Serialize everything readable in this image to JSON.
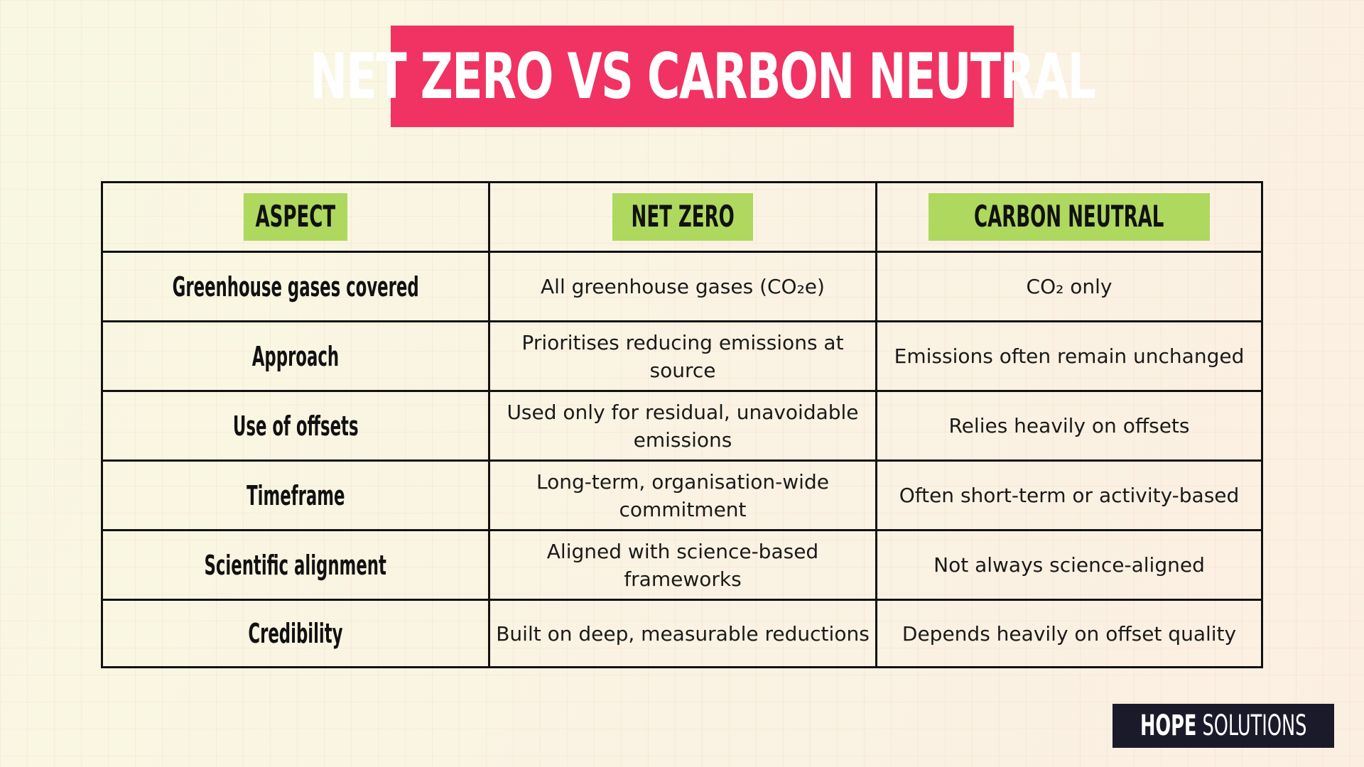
{
  "title": "NET ZERO VS CARBON NEUTRAL",
  "table": {
    "headers": [
      "ASPECT",
      "NET ZERO",
      "CARBON NEUTRAL"
    ],
    "rows": [
      {
        "aspect": "Greenhouse gases covered",
        "net_zero": "All greenhouse gases (CO₂e)",
        "carbon_neutral": "CO₂ only"
      },
      {
        "aspect": "Approach",
        "net_zero": "Prioritises reducing emissions at source",
        "carbon_neutral": "Emissions often remain unchanged"
      },
      {
        "aspect": "Use of offsets",
        "net_zero": "Used only for residual, unavoidable emissions",
        "carbon_neutral": "Relies heavily on offsets"
      },
      {
        "aspect": "Timeframe",
        "net_zero": "Long-term, organisation-wide commitment",
        "carbon_neutral": "Often short-term or activity-based"
      },
      {
        "aspect": "Scientific alignment",
        "net_zero": "Aligned with science-based frameworks",
        "carbon_neutral": "Not always science-aligned"
      },
      {
        "aspect": "Credibility",
        "net_zero": "Built on deep, measurable reductions",
        "carbon_neutral": "Depends heavily on offset quality"
      }
    ]
  },
  "brand": {
    "bold": "HOPE",
    "light": "SOLUTIONS"
  },
  "colors": {
    "banner": "#f03362",
    "header_tag": "#aed85e",
    "brand_box": "#1a1a2a",
    "background": "#faf4e4"
  }
}
